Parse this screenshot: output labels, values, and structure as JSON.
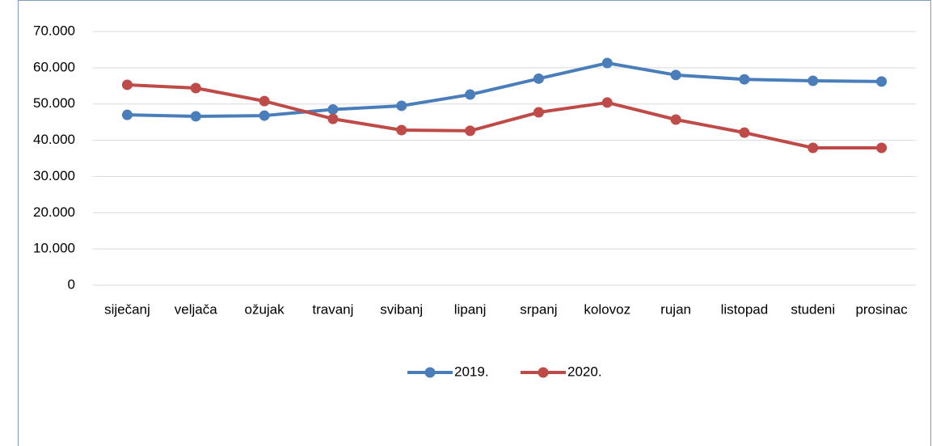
{
  "chart_data": {
    "type": "line",
    "categories": [
      "siječanj",
      "veljača",
      "ožujak",
      "travanj",
      "svibanj",
      "lipanj",
      "srpanj",
      "kolovoz",
      "rujan",
      "listopad",
      "studeni",
      "prosinac"
    ],
    "series": [
      {
        "name": "2019.",
        "color": "#4a7ebb",
        "values": [
          47000,
          46600,
          46800,
          48500,
          49500,
          52600,
          57000,
          61300,
          58000,
          56800,
          56400,
          56200
        ]
      },
      {
        "name": "2020.",
        "color": "#be4b48",
        "values": [
          55300,
          54400,
          50800,
          45900,
          42800,
          42600,
          47700,
          50400,
          45700,
          42100,
          37900,
          37900
        ]
      }
    ],
    "ylim": [
      0,
      70000
    ],
    "yticks": [
      0,
      {
        "value": 10000,
        "label": "10.000"
      },
      {
        "value": 20000,
        "label": "20.000"
      },
      {
        "value": 30000,
        "label": "30.000"
      },
      {
        "value": 40000,
        "label": "40.000"
      },
      {
        "value": 50000,
        "label": "50.000"
      },
      {
        "value": 60000,
        "label": "60.000"
      },
      {
        "value": 70000,
        "label": "70.000"
      }
    ],
    "grid": true,
    "legend": "bottom"
  }
}
